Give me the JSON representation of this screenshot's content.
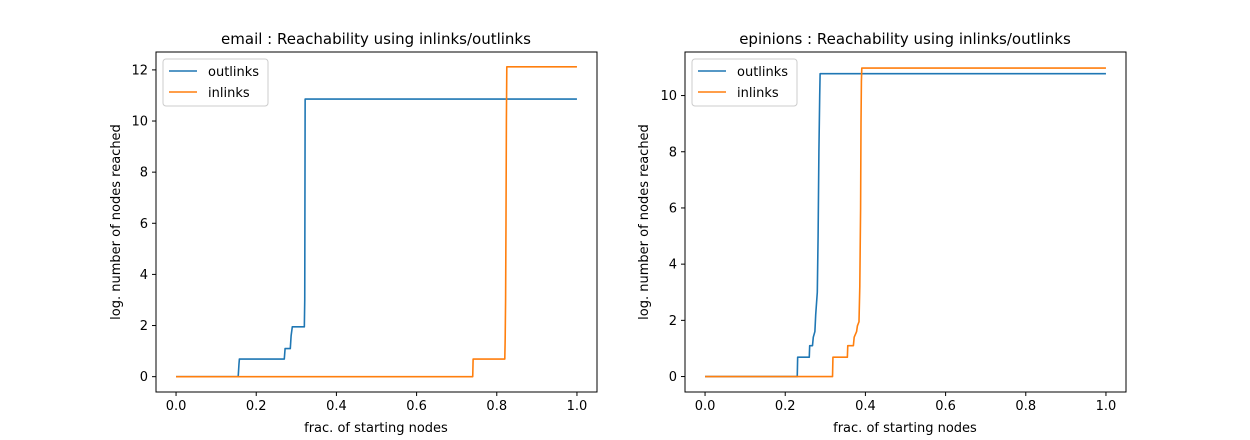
{
  "chart_data": [
    {
      "type": "line",
      "title": "email : Reachability using inlinks/outlinks",
      "xlabel": "frac. of starting nodes",
      "ylabel": "log. number of nodes reached",
      "xlim": [
        -0.05,
        1.05
      ],
      "ylim": [
        -0.6,
        12.7
      ],
      "xticks": [
        0.0,
        0.2,
        0.4,
        0.6,
        0.8,
        1.0
      ],
      "xtick_labels": [
        "0.0",
        "0.2",
        "0.4",
        "0.6",
        "0.8",
        "1.0"
      ],
      "yticks": [
        0,
        2,
        4,
        6,
        8,
        10,
        12
      ],
      "ytick_labels": [
        "0",
        "2",
        "4",
        "6",
        "8",
        "10",
        "12"
      ],
      "legend": "upper-left",
      "series": [
        {
          "name": "outlinks",
          "color": "#1f77b4",
          "x": [
            0.0,
            0.155,
            0.157,
            0.158,
            0.27,
            0.272,
            0.285,
            0.287,
            0.29,
            0.292,
            0.32,
            0.321,
            0.322,
            0.323,
            1.0
          ],
          "y": [
            0.0,
            0.0,
            0.5,
            0.69,
            0.69,
            1.1,
            1.1,
            1.6,
            1.95,
            1.95,
            1.95,
            3.0,
            10.86,
            10.86,
            10.86
          ]
        },
        {
          "name": "inlinks",
          "color": "#ff7f0e",
          "x": [
            0.0,
            0.74,
            0.741,
            0.82,
            0.821,
            0.822,
            0.823,
            0.824,
            0.825,
            1.0
          ],
          "y": [
            0.0,
            0.0,
            0.69,
            0.69,
            1.5,
            3.0,
            6.0,
            10.0,
            12.12,
            12.12
          ]
        }
      ]
    },
    {
      "type": "line",
      "title": "epinions : Reachability using inlinks/outlinks",
      "xlabel": "frac. of starting nodes",
      "ylabel": "log. number of nodes reached",
      "xlim": [
        -0.05,
        1.05
      ],
      "ylim": [
        -0.55,
        11.55
      ],
      "xticks": [
        0.0,
        0.2,
        0.4,
        0.6,
        0.8,
        1.0
      ],
      "xtick_labels": [
        "0.0",
        "0.2",
        "0.4",
        "0.6",
        "0.8",
        "1.0"
      ],
      "yticks": [
        0,
        2,
        4,
        6,
        8,
        10
      ],
      "ytick_labels": [
        "0",
        "2",
        "4",
        "6",
        "8",
        "10"
      ],
      "legend": "upper-left",
      "series": [
        {
          "name": "outlinks",
          "color": "#1f77b4",
          "x": [
            0.0,
            0.23,
            0.231,
            0.26,
            0.261,
            0.268,
            0.27,
            0.274,
            0.276,
            0.28,
            0.282,
            0.284,
            0.286,
            0.287,
            0.288,
            1.0
          ],
          "y": [
            0.0,
            0.0,
            0.69,
            0.69,
            1.1,
            1.1,
            1.4,
            1.6,
            2.2,
            3.0,
            5.0,
            8.0,
            10.0,
            10.78,
            10.78,
            10.78
          ]
        },
        {
          "name": "inlinks",
          "color": "#ff7f0e",
          "x": [
            0.0,
            0.318,
            0.319,
            0.355,
            0.356,
            0.37,
            0.372,
            0.378,
            0.38,
            0.384,
            0.386,
            0.388,
            0.389,
            0.39,
            0.391,
            0.392,
            1.0
          ],
          "y": [
            0.0,
            0.0,
            0.69,
            0.69,
            1.1,
            1.1,
            1.4,
            1.6,
            1.8,
            1.95,
            3.2,
            6.0,
            9.0,
            10.5,
            10.98,
            10.98,
            10.98
          ]
        }
      ]
    }
  ]
}
